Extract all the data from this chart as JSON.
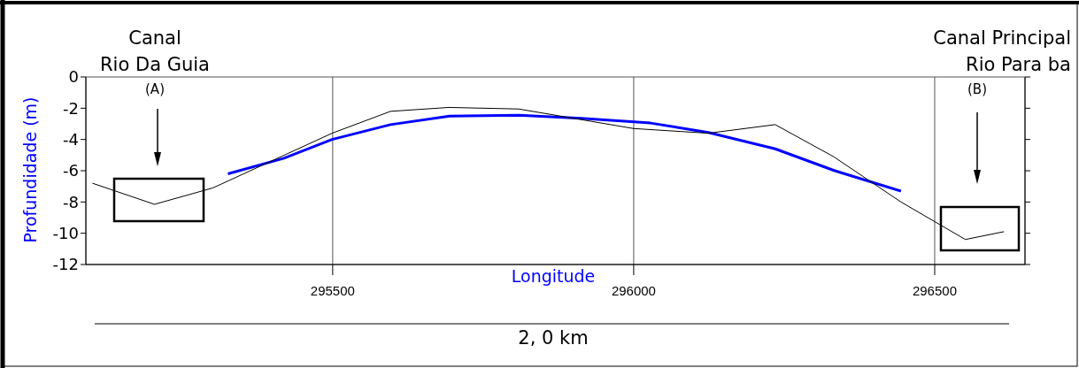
{
  "chart_data": {
    "type": "line",
    "xlabel": "Longitude",
    "ylabel": "Profundidade (m)",
    "xlim": [
      295090,
      296650
    ],
    "xticks": [
      295500,
      296000,
      296500
    ],
    "ylim": [
      -12,
      0
    ],
    "yticks": [
      0,
      -2,
      -4,
      -6,
      -8,
      -10,
      -12
    ],
    "grid": true,
    "marker": "none",
    "line_style": "solid",
    "series": [
      {
        "color": "#000000",
        "x": [
          295101,
          295204,
          295301,
          295499,
          295596,
          295693,
          295809,
          296000,
          296124,
          296235,
          296332,
          296444,
          296551,
          296615
        ],
        "values": [
          -6.8,
          -8.15,
          -7.1,
          -3.6,
          -2.2,
          -1.95,
          -2.05,
          -3.3,
          -3.6,
          -3.05,
          -5.1,
          -8.0,
          -10.4,
          -9.9
        ]
      },
      {
        "color": "#0000ff",
        "x": [
          295326,
          295419,
          295499,
          295596,
          295694,
          295809,
          295913,
          296028,
          296124,
          296235,
          296334,
          296444
        ],
        "values": [
          -6.2,
          -5.2,
          -4.0,
          -3.05,
          -2.5,
          -2.45,
          -2.65,
          -2.95,
          -3.55,
          -4.6,
          -6.0,
          -7.3
        ]
      }
    ],
    "annotations": [
      "Canal\nRio Da Guia",
      "Canal Principal\nRio Para ba",
      "(A)",
      "(B)",
      "2, 0 km"
    ]
  }
}
